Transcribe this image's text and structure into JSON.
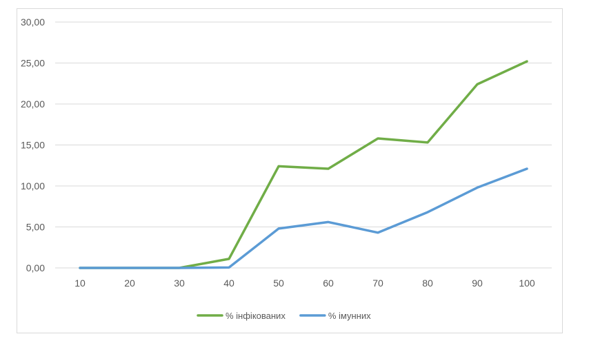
{
  "chart_data": {
    "type": "line",
    "x": [
      10,
      20,
      30,
      40,
      50,
      60,
      70,
      80,
      90,
      100
    ],
    "y_ticks": [
      "0,00",
      "5,00",
      "10,00",
      "15,00",
      "20,00",
      "25,00",
      "30,00"
    ],
    "ylim": [
      0,
      30
    ],
    "grid": true,
    "legend_position": "bottom",
    "series": [
      {
        "name": "% інфікованих",
        "color": "#70ad47",
        "values": [
          0,
          0,
          0,
          1.1,
          12.4,
          12.1,
          15.8,
          15.3,
          22.4,
          25.2
        ]
      },
      {
        "name": "% імунних",
        "color": "#5b9bd5",
        "values": [
          0,
          0,
          0,
          0.05,
          4.8,
          5.6,
          4.3,
          6.8,
          9.8,
          12.1
        ]
      }
    ]
  }
}
